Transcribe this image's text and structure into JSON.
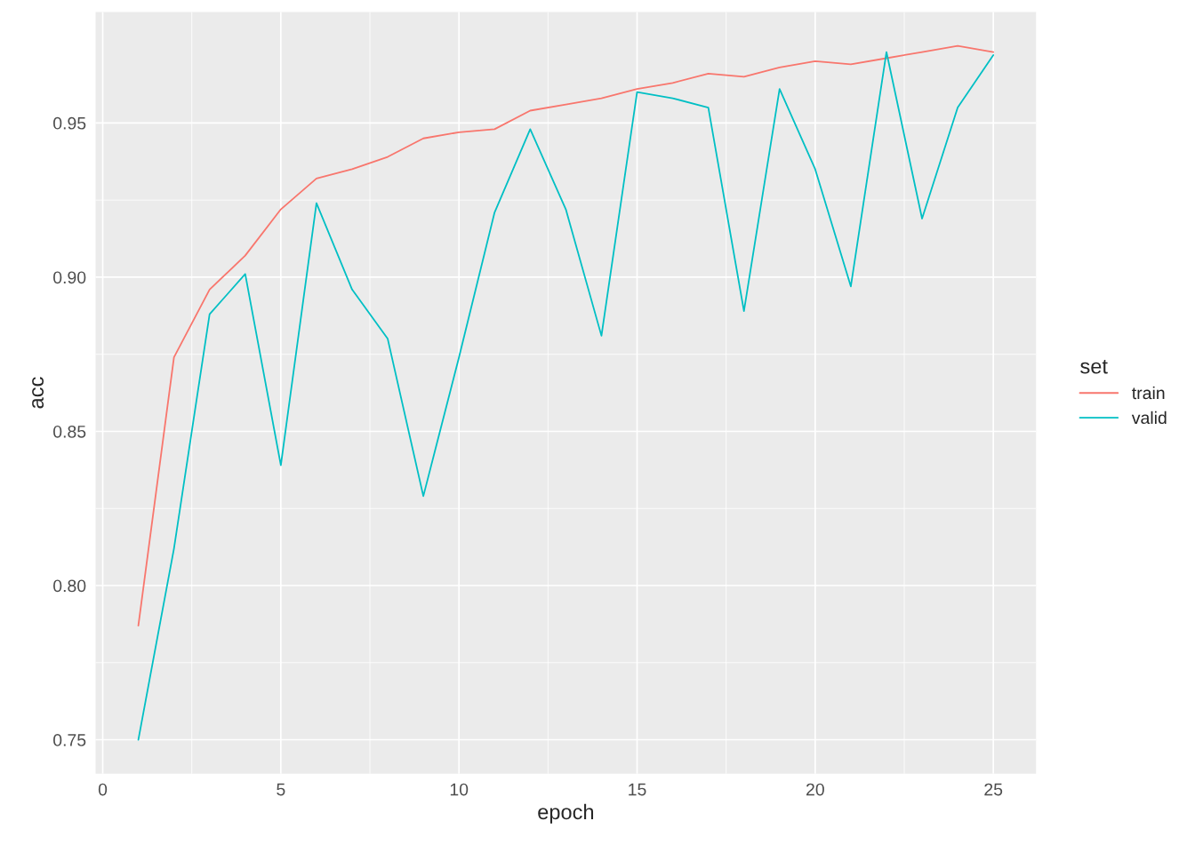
{
  "chart_data": {
    "type": "line",
    "xlabel": "epoch",
    "ylabel": "acc",
    "legend_title": "set",
    "legend": "right",
    "grid": true,
    "x": [
      1,
      2,
      3,
      4,
      5,
      6,
      7,
      8,
      9,
      10,
      11,
      12,
      13,
      14,
      15,
      16,
      17,
      18,
      19,
      20,
      21,
      22,
      23,
      24,
      25
    ],
    "series": [
      {
        "name": "train",
        "color": "#f8766d",
        "values": [
          0.787,
          0.874,
          0.896,
          0.907,
          0.922,
          0.932,
          0.935,
          0.939,
          0.945,
          0.947,
          0.948,
          0.954,
          0.956,
          0.958,
          0.961,
          0.963,
          0.966,
          0.965,
          0.968,
          0.97,
          0.969,
          0.971,
          0.973,
          0.975,
          0.973
        ]
      },
      {
        "name": "valid",
        "color": "#00bfc4",
        "values": [
          0.75,
          0.812,
          0.888,
          0.901,
          0.839,
          0.924,
          0.896,
          0.88,
          0.829,
          0.874,
          0.921,
          0.948,
          0.922,
          0.881,
          0.96,
          0.958,
          0.955,
          0.889,
          0.961,
          0.935,
          0.897,
          0.973,
          0.919,
          0.955,
          0.972
        ]
      }
    ],
    "xlim": [
      -0.2,
      26.2
    ],
    "ylim": [
      0.739,
      0.986
    ],
    "xticks": [
      0,
      5,
      10,
      15,
      20,
      25
    ],
    "yticks": [
      {
        "value": 0.75,
        "label": "0.75"
      },
      {
        "value": 0.8,
        "label": "0.80"
      },
      {
        "value": 0.85,
        "label": "0.85"
      },
      {
        "value": 0.9,
        "label": "0.90"
      },
      {
        "value": 0.95,
        "label": "0.95"
      }
    ]
  }
}
